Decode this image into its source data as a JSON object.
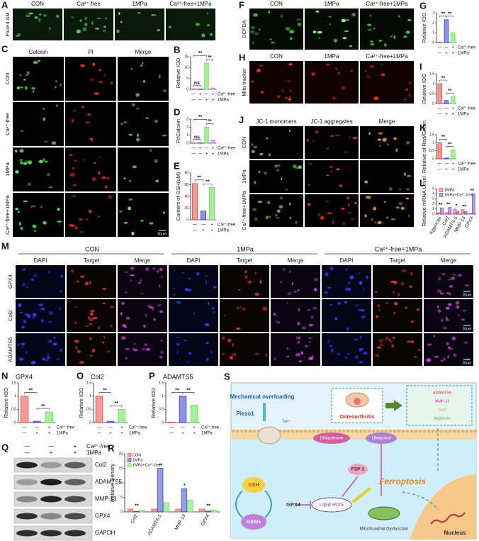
{
  "micrographs": [
    {
      "letter": "A",
      "columns": [
        "CON",
        "Ca²⁺-free",
        "1MPa",
        "Ca²⁺-free+1MPa"
      ],
      "rows": [
        "Fluo-4 AM"
      ]
    },
    {
      "letter": "C",
      "columns": [
        "Calcein",
        "PI",
        "Merge"
      ],
      "rows": [
        "CON",
        "Ca²⁺-free",
        "1MPa",
        "Ca²⁺-free+1MPa"
      ],
      "scale": "50um"
    },
    {
      "letter": "F",
      "columns": [
        "CON",
        "1MPa",
        "Ca²⁺-free+1MPa"
      ],
      "rows": [
        "DCFDA"
      ]
    },
    {
      "letter": "H",
      "columns": [
        "CON",
        "1MPa",
        "Ca²⁺-free+1MPa"
      ],
      "rows": [
        "Mito tracker"
      ]
    },
    {
      "letter": "J",
      "columns": [
        "JC-1 monomers",
        "JC-1 aggregates",
        "Merge"
      ],
      "rows": [
        "CON",
        "1MPa",
        "Ca²⁺-free+1MPa"
      ]
    },
    {
      "letter": "M",
      "groups": [
        "CON",
        "1MPa",
        "Ca²⁺-free+1MPa"
      ],
      "columns": [
        "DAPI",
        "Target",
        "Merge",
        "DAPI",
        "Target",
        "Merge",
        "DAPI",
        "Target",
        "Merge"
      ],
      "rows": [
        "GPX4",
        "Col2",
        "ADAMTS5"
      ],
      "scale": "20um"
    }
  ],
  "chart_data": [
    {
      "type": "bar",
      "letter": "B",
      "ylabel": "Relative IOD",
      "values": [
        0.2,
        0.2,
        12,
        0.6
      ],
      "colors": [
        "#f4433c",
        "#2a3bd6",
        "#5ee04a",
        "#c86ee6"
      ],
      "ylim": [
        0,
        15
      ],
      "yticks": [
        0,
        5,
        10,
        15
      ],
      "annotations": [
        "ns",
        "**",
        "**"
      ],
      "conditions": [
        {
          "label": "Ca²⁺-free",
          "marks": [
            "—",
            "+",
            "—",
            "+"
          ]
        },
        {
          "label": "1MPa",
          "marks": [
            "—",
            "—",
            "+",
            "+"
          ]
        }
      ]
    },
    {
      "type": "bar",
      "letter": "D",
      "ylabel": "PI/Calcein",
      "values": [
        0.05,
        0.05,
        2,
        0.4
      ],
      "colors": [
        "#f4433c",
        "#2a3bd6",
        "#5ee04a",
        "#c86ee6"
      ],
      "ylim": [
        0,
        3
      ],
      "yticks": [
        0,
        1,
        2,
        3
      ],
      "annotations": [
        "ns",
        "**",
        "**"
      ],
      "conditions": [
        {
          "label": "Ca²⁺-free",
          "marks": [
            "—",
            "+",
            "—",
            "+"
          ]
        },
        {
          "label": "1MPa",
          "marks": [
            "—",
            "—",
            "+",
            "+"
          ]
        }
      ]
    },
    {
      "type": "bar",
      "letter": "E",
      "ylabel": "Content of GSH(uM)",
      "values": [
        62,
        15,
        55
      ],
      "colors": [
        "#f4433c",
        "#2a3bd6",
        "#5ee04a"
      ],
      "ylim": [
        0,
        80
      ],
      "yticks": [
        0,
        20,
        40,
        60,
        80
      ],
      "annotations": [
        "**",
        "**"
      ],
      "conditions": [
        {
          "label": "Ca²⁺-free",
          "marks": [
            "—",
            "—",
            "+"
          ]
        },
        {
          "label": "1MPa",
          "marks": [
            "—",
            "+",
            "+"
          ]
        }
      ]
    },
    {
      "type": "bar",
      "letter": "G",
      "ylabel": "Relative IOD",
      "values": [
        0.05,
        2.3,
        1
      ],
      "colors": [
        "#f4433c",
        "#2a3bd6",
        "#5ee04a"
      ],
      "ylim": [
        0,
        3
      ],
      "yticks": [
        0,
        1,
        2,
        3
      ],
      "annotations": [
        "**",
        "**"
      ],
      "conditions": [
        {
          "label": "Ca²⁺-free",
          "marks": [
            "—",
            "—",
            "+"
          ]
        },
        {
          "label": "1MPa",
          "marks": [
            "—",
            "+",
            "+"
          ]
        }
      ]
    },
    {
      "type": "bar",
      "letter": "I",
      "ylabel": "Relative IOD",
      "values": [
        1,
        0.15,
        0.35
      ],
      "colors": [
        "#f4433c",
        "#2a3bd6",
        "#5ee04a"
      ],
      "ylim": [
        0,
        1.5
      ],
      "yticks": [
        0,
        0.5,
        1,
        1.5
      ],
      "annotations": [
        "**",
        "**"
      ],
      "conditions": [
        {
          "label": "Ca²⁺-free",
          "marks": [
            "—",
            "—",
            "+"
          ]
        },
        {
          "label": "1MPa",
          "marks": [
            "—",
            "+",
            "+"
          ]
        }
      ]
    },
    {
      "type": "bar",
      "letter": "K",
      "ylabel": "Relative of Red/Green",
      "values": [
        1,
        0.05,
        0.55
      ],
      "colors": [
        "#f4433c",
        "#2a3bd6",
        "#5ee04a"
      ],
      "ylim": [
        0,
        1.5
      ],
      "yticks": [
        0,
        0.5,
        1,
        1.5
      ],
      "annotations": [
        "**",
        "**"
      ],
      "conditions": [
        {
          "label": "Ca²⁺-free",
          "marks": [
            "—",
            "—",
            "+"
          ]
        },
        {
          "label": "1MPa",
          "marks": [
            "—",
            "+",
            "+"
          ]
        }
      ]
    },
    {
      "type": "grouped_bar",
      "letter": "L",
      "ylabel": "Relative mRNA Level",
      "categories": [
        "Aggrecan",
        "Col2",
        "ADAMTS-5",
        "MMP-13",
        "GPX4"
      ],
      "series": [
        {
          "name": "1MPa",
          "color": "#f4433c",
          "values": [
            0.3,
            0.3,
            1,
            0.9,
            0.1
          ]
        },
        {
          "name": "1MPa+Ca²⁺-free",
          "color": "#6a3bd6",
          "values": [
            1.2,
            1.3,
            0.6,
            0.5,
            4
          ]
        }
      ],
      "ylim": [
        0,
        5
      ],
      "yticks": [
        0,
        1,
        2,
        3,
        4,
        5
      ],
      "annotations": [
        "**",
        "**",
        "*",
        "**",
        "**"
      ]
    },
    {
      "type": "bar",
      "letter": "N",
      "title": "GPX4",
      "ylabel": "Relative IOD",
      "values": [
        1,
        0.05,
        0.4
      ],
      "colors": [
        "#f4433c",
        "#2a3bd6",
        "#5ee04a"
      ],
      "ylim": [
        0,
        1.5
      ],
      "yticks": [
        0,
        0.5,
        1,
        1.5
      ],
      "annotations": [
        "**",
        "**"
      ],
      "conditions": [
        {
          "label": "Ca²⁺-free",
          "marks": [
            "—",
            "—",
            "+"
          ]
        },
        {
          "label": "1MPa",
          "marks": [
            "—",
            "+",
            "+"
          ]
        }
      ]
    },
    {
      "type": "bar",
      "letter": "O",
      "title": "Col2",
      "ylabel": "Relative IOD",
      "values": [
        1,
        0.05,
        0.5
      ],
      "colors": [
        "#f4433c",
        "#2a3bd6",
        "#5ee04a"
      ],
      "ylim": [
        0,
        1.5
      ],
      "yticks": [
        0,
        0.5,
        1,
        1.5
      ],
      "annotations": [
        "**",
        "**"
      ],
      "conditions": [
        {
          "label": "Ca²⁺-free",
          "marks": [
            "—",
            "—",
            "+"
          ]
        },
        {
          "label": "1MPa",
          "marks": [
            "—",
            "+",
            "+"
          ]
        }
      ]
    },
    {
      "type": "bar",
      "letter": "P",
      "title": "ADAMTS5",
      "ylabel": "Relative IOD",
      "values": [
        0.02,
        1,
        0.65
      ],
      "colors": [
        "#f4433c",
        "#2a3bd6",
        "#5ee04a"
      ],
      "ylim": [
        0,
        1.5
      ],
      "yticks": [
        0,
        0.5,
        1,
        1.5
      ],
      "annotations": [
        "**",
        "**"
      ],
      "conditions": [
        {
          "label": "Ca²⁺-free",
          "marks": [
            "—",
            "—",
            "+"
          ]
        },
        {
          "label": "1MPa",
          "marks": [
            "—",
            "+",
            "+"
          ]
        }
      ]
    },
    {
      "type": "grouped_bar",
      "letter": "R",
      "ylabel": "Relative Density",
      "categories": [
        "Col2",
        "ADAMTS-5",
        "MMP-13",
        "GPX4"
      ],
      "series": [
        {
          "name": "CON",
          "color": "#f4433c",
          "values": [
            1,
            1,
            1,
            1
          ]
        },
        {
          "name": "1MPa",
          "color": "#2a3bd6",
          "values": [
            0.2,
            15,
            8,
            0.3
          ]
        },
        {
          "name": "1MPa+Ca²⁺-free",
          "color": "#5ee04a",
          "values": [
            0.6,
            3.2,
            4,
            0.7
          ]
        }
      ],
      "ylim": [
        0,
        20
      ],
      "yticks": [
        0,
        5,
        10,
        15,
        20
      ],
      "annotations": [
        "**",
        "**",
        "*",
        "**"
      ]
    }
  ],
  "western": {
    "letter": "Q",
    "conditions": [
      {
        "label": "Ca²⁺-free",
        "marks": [
          "—",
          "—",
          "+"
        ]
      },
      {
        "label": "1MPa",
        "marks": [
          "—",
          "+",
          "+"
        ]
      }
    ],
    "bands": [
      "Col2",
      "ADAMTS5",
      "MMP-13",
      "GPX4",
      "GAPDH"
    ]
  },
  "schematic": {
    "letter": "S",
    "labels": [
      "Mechanical overloading",
      "Piezo1",
      "Ca²⁺",
      "Ubiquinone",
      "Ubiquinol",
      "FSP-1",
      "GSH",
      "GSSG",
      "GPX4",
      "Lipid ROS",
      "Ferroptosis",
      "Mitochondrial Dysfunction",
      "Osteoarthritis",
      "Nucleus",
      "ADAMTS5",
      "MMP-13",
      "Col2",
      "Aggrecan"
    ]
  }
}
